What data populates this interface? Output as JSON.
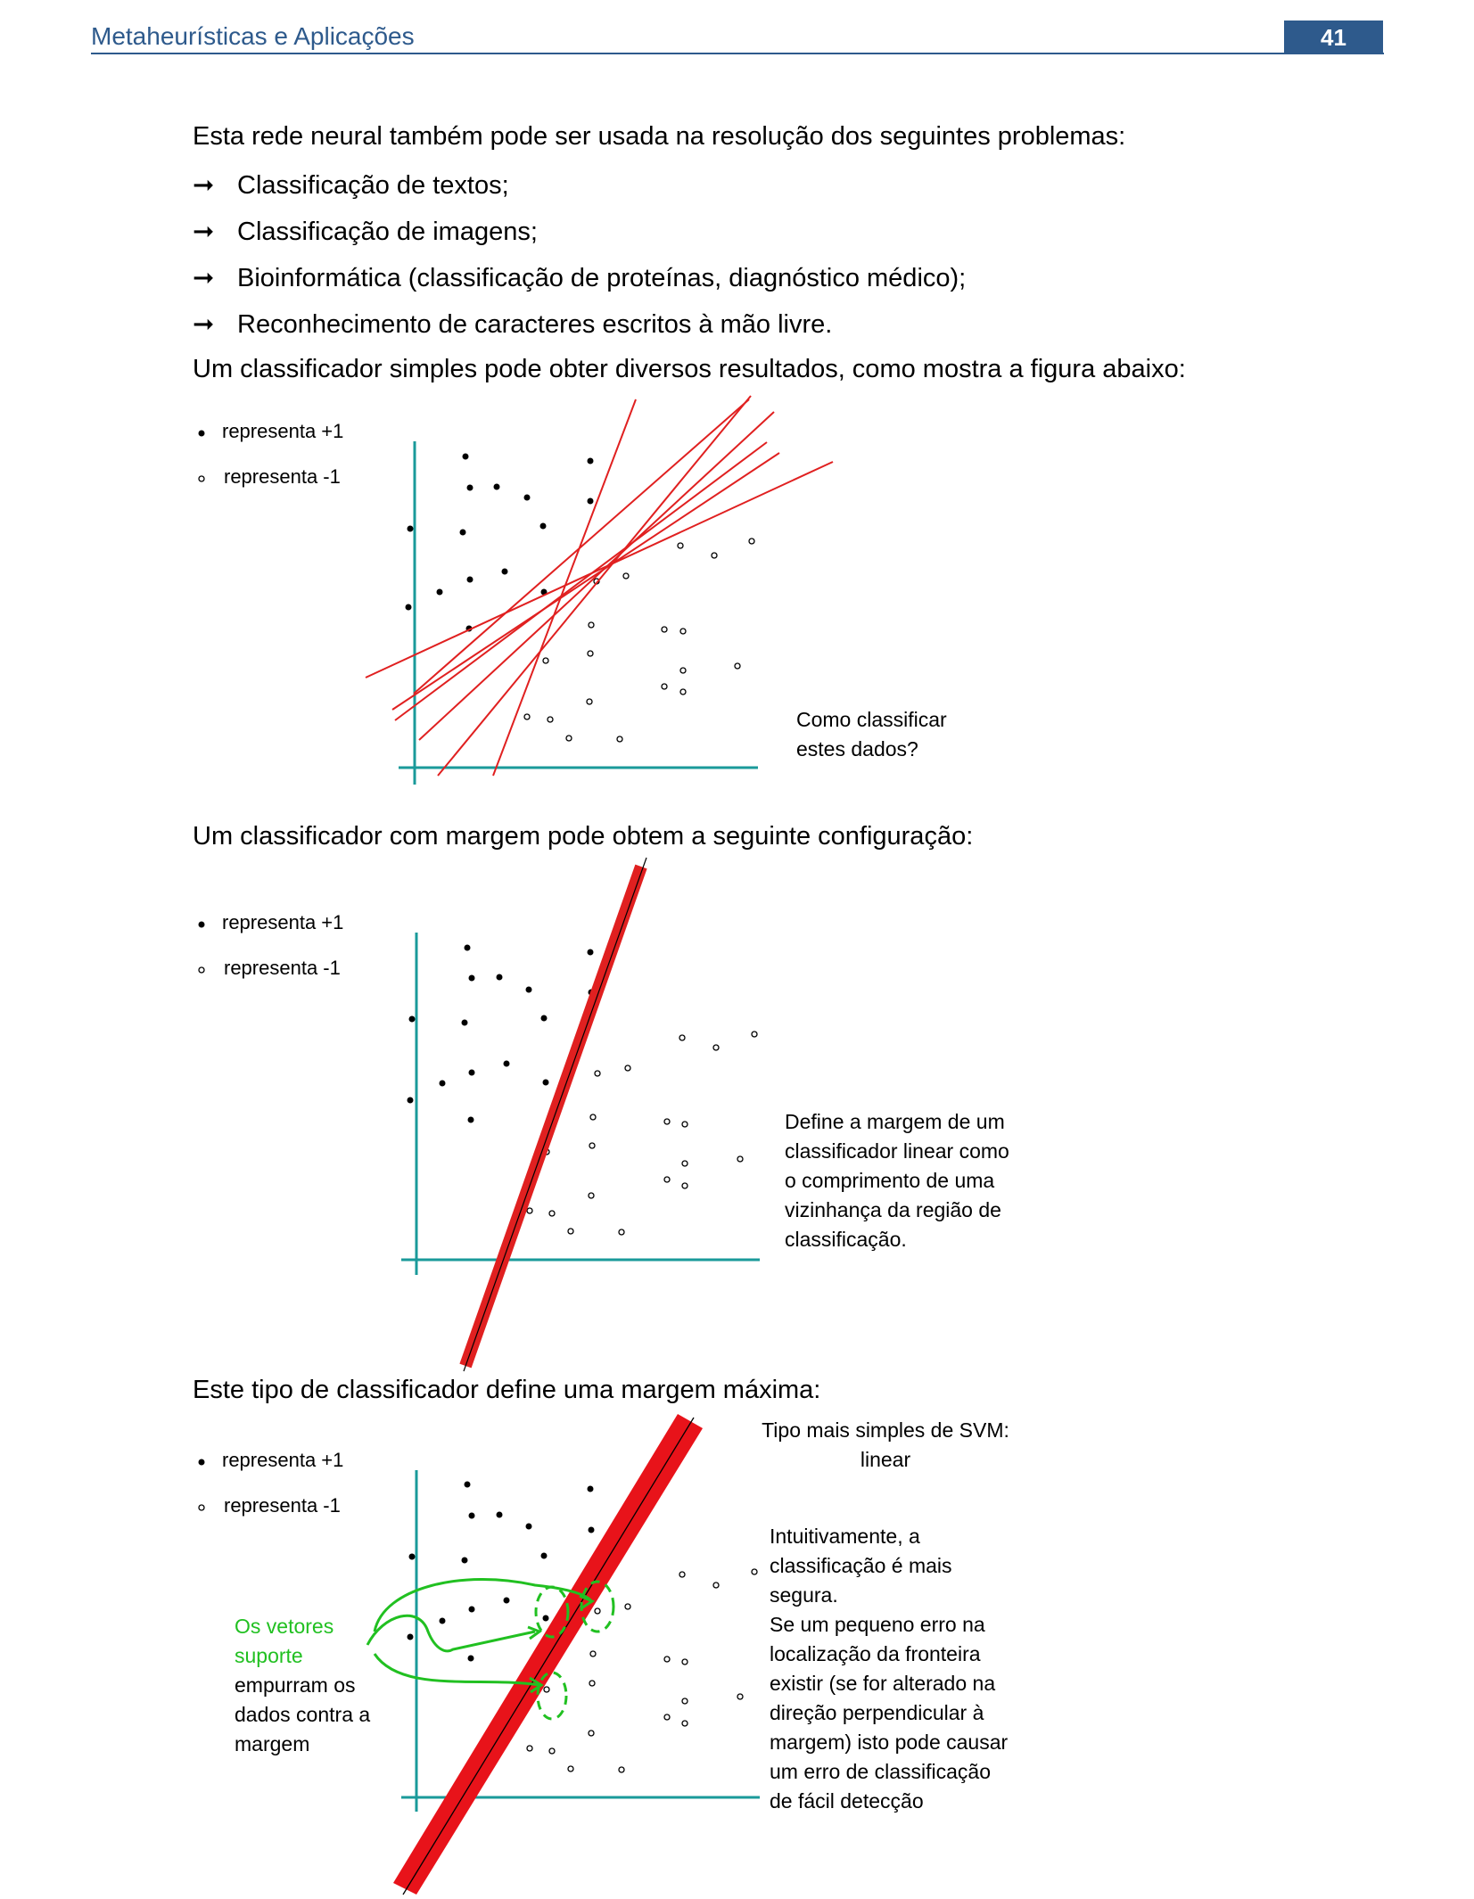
{
  "header": {
    "title": "Metaheurísticas e Aplicações",
    "page_number": "41"
  },
  "intro": "Esta rede neural também pode ser usada na resolução dos seguintes problemas:",
  "bullets": [
    "Classificação de textos;",
    "Classificação de imagens;",
    "Bioinformática (classificação de proteínas, diagnóstico médico);",
    "Reconhecimento de caracteres escritos à mão livre."
  ],
  "arrow_glyph": "➞",
  "para_simple": "Um classificador simples pode obter diversos resultados, como mostra a figura abaixo:",
  "para_margin": "Um classificador com margem pode obtem a seguinte configuração:",
  "para_max": "Este tipo de classificador define uma margem máxima:",
  "legend": {
    "plus": "representa +1",
    "minus": "representa -1"
  },
  "fig1": {
    "caption_lines": [
      "Como classificar",
      "estes dados?"
    ]
  },
  "fig2": {
    "caption_lines": [
      "Define a margem de um",
      "classificador linear como",
      "o comprimento de uma",
      "vizinhança da região de",
      "classificação."
    ]
  },
  "fig3": {
    "title_lines": [
      "Tipo mais simples de SVM:",
      "linear"
    ],
    "caption_lines": [
      "Intuitivamente, a",
      "classificação é mais",
      "segura.",
      "Se um pequeno erro na",
      "localização da fronteira",
      "existir (se for alterado na",
      "direção perpendicular à",
      "margem) isto pode causar",
      "um erro de classificação",
      "de fácil detecção"
    ],
    "support_green": [
      "Os vetores",
      "suporte"
    ],
    "support_black": [
      "empurram os",
      "dados contra a",
      "margem"
    ]
  },
  "colors": {
    "header": "#2e5a8c",
    "axis": "#1a9a9a",
    "line": "#e02020",
    "green": "#21c021"
  }
}
